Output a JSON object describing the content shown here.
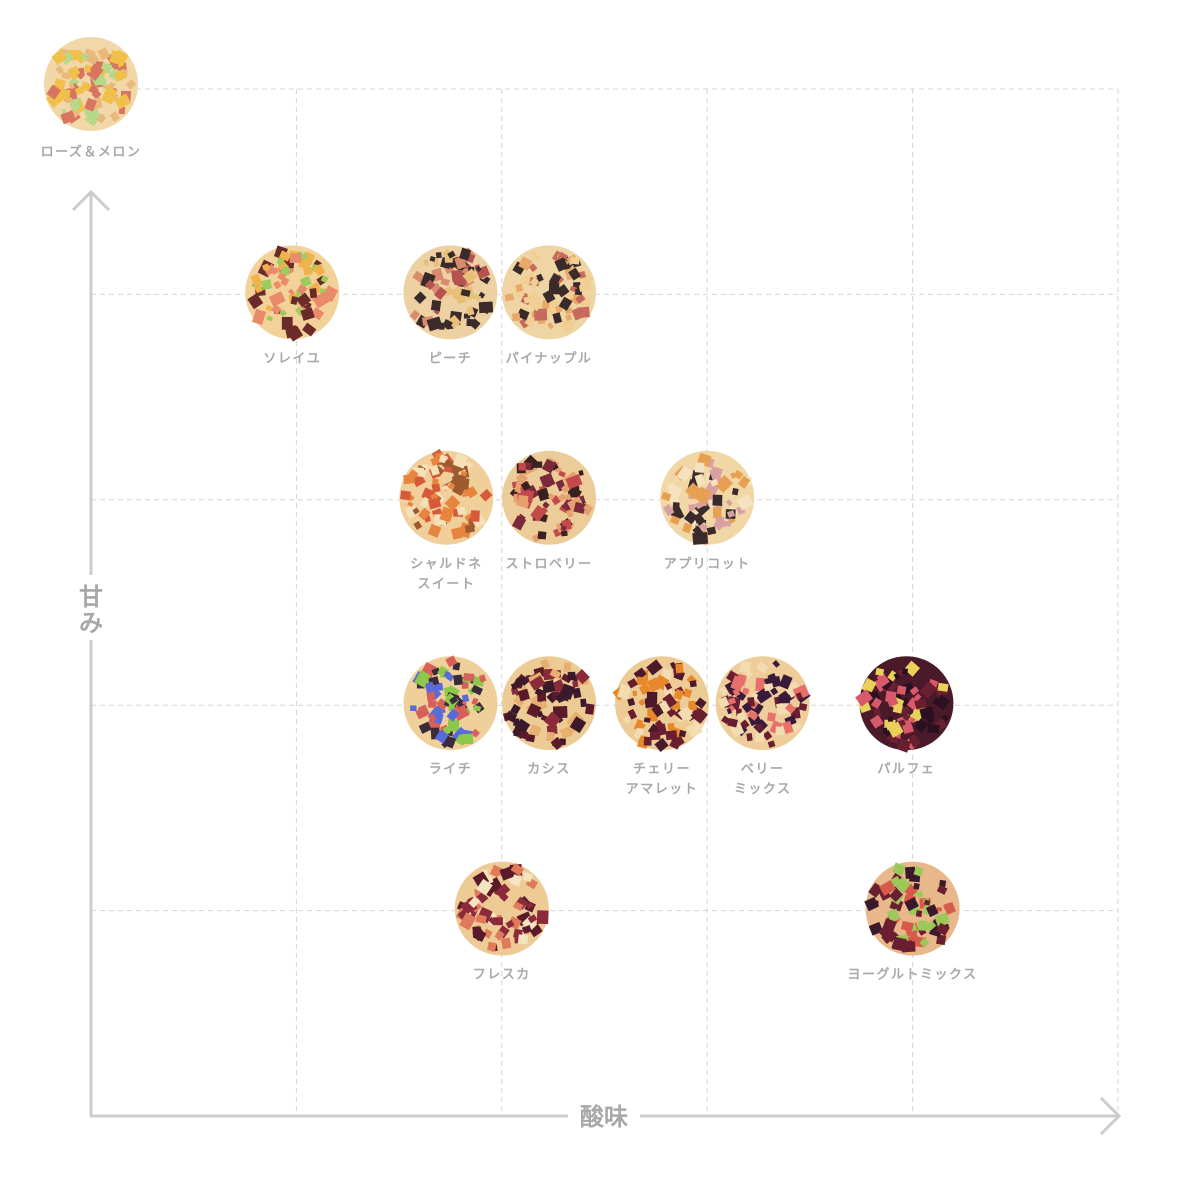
{
  "chart_data": {
    "type": "scatter",
    "title": "",
    "xlabel": "酸味",
    "ylabel": "甘み",
    "xlim": [
      0,
      5
    ],
    "ylim": [
      0,
      5
    ],
    "grid": true,
    "axis_color": "#cccccc",
    "grid_color": "#d6d6d6",
    "label_color": "#a8a8a8",
    "points": [
      {
        "label": [
          "ローズ＆メロン"
        ],
        "x": 0.0,
        "y": 5.0,
        "colors": [
          "#f2d7a8",
          "#e8b97a",
          "#b5d88a",
          "#d8745f",
          "#f0c04a"
        ]
      },
      {
        "label": [
          "ソレイユ"
        ],
        "x": 0.98,
        "y": 4.0,
        "colors": [
          "#f3d29a",
          "#e98a6a",
          "#9ccc5e",
          "#6b2a2a",
          "#f0b24a"
        ]
      },
      {
        "label": [
          "ピーチ"
        ],
        "x": 1.75,
        "y": 4.0,
        "colors": [
          "#eed1a2",
          "#d98b6e",
          "#b5534f",
          "#3a2a2a",
          "#e8c07a"
        ]
      },
      {
        "label": [
          "パイナップル"
        ],
        "x": 2.23,
        "y": 4.0,
        "colors": [
          "#efd4a4",
          "#e7a86a",
          "#c56a5c",
          "#3a2a2a",
          "#f1cf92"
        ]
      },
      {
        "label": [
          "シャルドネ",
          "スイート"
        ],
        "x": 1.73,
        "y": 3.0,
        "colors": [
          "#f1cf9a",
          "#e7853f",
          "#f5e0b8",
          "#9c5a2e",
          "#d65a3a"
        ]
      },
      {
        "label": [
          "ストロベリー"
        ],
        "x": 2.23,
        "y": 3.0,
        "colors": [
          "#eccc98",
          "#c24a4a",
          "#7a2a3a",
          "#e7a070",
          "#3a2020"
        ]
      },
      {
        "label": [
          "アプリコット"
        ],
        "x": 3.0,
        "y": 3.0,
        "colors": [
          "#f2d7a6",
          "#e7a052",
          "#d8a0a0",
          "#3a2a2a",
          "#f5e2bf"
        ]
      },
      {
        "label": [
          "ライチ"
        ],
        "x": 1.75,
        "y": 2.0,
        "colors": [
          "#f0d09a",
          "#8cc84a",
          "#5a6ad8",
          "#3a2a3a",
          "#d8605a"
        ]
      },
      {
        "label": [
          "カシス"
        ],
        "x": 2.23,
        "y": 2.0,
        "colors": [
          "#eccb95",
          "#3a1a2a",
          "#5a1a2a",
          "#e7b070",
          "#8a2a3a"
        ]
      },
      {
        "label": [
          "チェリー",
          "アマレット"
        ],
        "x": 2.78,
        "y": 2.0,
        "colors": [
          "#eccb95",
          "#4a1a2a",
          "#e7882a",
          "#6a1f30",
          "#f3dcb0"
        ]
      },
      {
        "label": [
          "ベリー",
          "ミックス"
        ],
        "x": 3.27,
        "y": 2.0,
        "colors": [
          "#eecd9a",
          "#e7706a",
          "#3a1a3a",
          "#6a1f30",
          "#f3dcb0"
        ]
      },
      {
        "label": [
          "パルフェ"
        ],
        "x": 3.97,
        "y": 2.0,
        "colors": [
          "#4a1a2a",
          "#2a1020",
          "#d85a6a",
          "#6a1f30",
          "#e8d05a"
        ]
      },
      {
        "label": [
          "フレスカ"
        ],
        "x": 2.0,
        "y": 1.0,
        "colors": [
          "#eecb95",
          "#5a1a2a",
          "#e07a5a",
          "#f5e4c0",
          "#8a2a3a"
        ]
      },
      {
        "label": [
          "ヨーグルトミックス"
        ],
        "x": 4.0,
        "y": 1.0,
        "colors": [
          "#e8b88a",
          "#6a1f30",
          "#d85a4a",
          "#9cc85a",
          "#3a1a2a"
        ]
      }
    ]
  }
}
